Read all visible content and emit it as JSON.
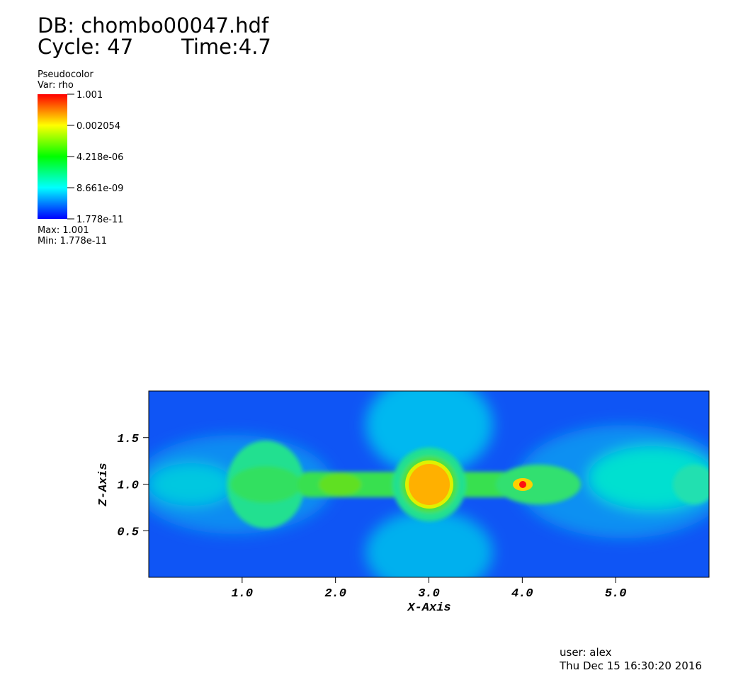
{
  "header": {
    "database": "DB: chombo00047.hdf",
    "cycle": "Cycle: 47",
    "time": "Time:4.7"
  },
  "chart_data": {
    "type": "pseudocolor",
    "xlabel": "X-Axis",
    "ylabel": "Z-Axis",
    "xlim": [
      0,
      6
    ],
    "ylim": [
      0,
      2
    ],
    "xticks": [
      {
        "value": 1,
        "label": "1.0"
      },
      {
        "value": 2,
        "label": "2.0"
      },
      {
        "value": 3,
        "label": "3.0"
      },
      {
        "value": 4,
        "label": "4.0"
      },
      {
        "value": 5,
        "label": "5.0"
      }
    ],
    "yticks": [
      0.5,
      {
        "value": 1,
        "label": "1.0"
      },
      1.5
    ],
    "colorbar": {
      "title": "Pseudocolor",
      "variable": "Var: rho",
      "log_scale": true,
      "clim": [
        1.778e-11,
        1.001
      ],
      "ticks": [
        1.001,
        0.002054,
        {
          "value": 4.218e-06,
          "label": "4.218e-06"
        },
        {
          "value": 8.661e-09,
          "label": "8.661e-09"
        },
        {
          "value": 1.778e-11,
          "label": "1.778e-11"
        }
      ],
      "max_label": "Max:  1.001",
      "min_label": "Min:  1.778e-11"
    }
  },
  "footer": {
    "user": "user: alex",
    "date": "Thu Dec 15 16:30:20 2016"
  }
}
